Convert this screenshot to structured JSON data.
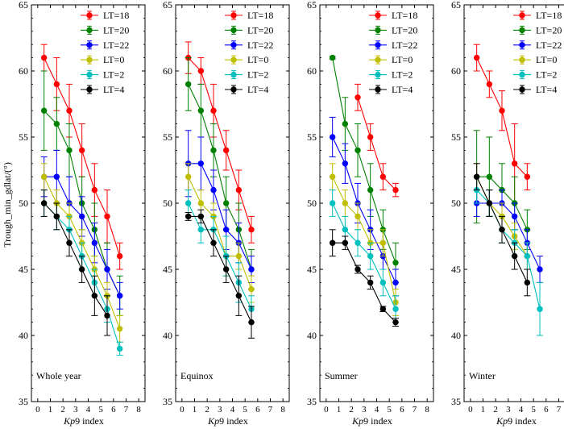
{
  "figure": {
    "ylabel": "Trough_min_gdlat/(°)",
    "xlabel_italic": "Kp",
    "xlabel_rest": "9 index"
  },
  "colors": {
    "LT=18": "#ff0000",
    "LT=20": "#008000",
    "LT=22": "#0000ff",
    "LT=0": "#bfbf00",
    "LT=2": "#00bfbf",
    "LT=4": "#000000"
  },
  "chart_data": [
    {
      "type": "line",
      "title": "Whole year",
      "xlabel": "Kp9 index",
      "ylabel": "Trough_min_gdlat/(°)",
      "xlim": [
        -0.5,
        8.5
      ],
      "ylim": [
        35,
        65
      ],
      "xticks": [
        "0",
        "1",
        "2",
        "3",
        "4",
        "5",
        "6",
        "7",
        "8"
      ],
      "yticks": [
        "35",
        "40",
        "45",
        "50",
        "55",
        "60",
        "65"
      ],
      "legend": [
        "LT=18",
        "LT=20",
        "LT=22",
        "LT=0",
        "LT=2",
        "LT=4"
      ],
      "legend_position": "top-right",
      "series": [
        {
          "name": "LT=18",
          "x": [
            0.5,
            1.5,
            2.5,
            3.5,
            4.5,
            5.5,
            6.5
          ],
          "y": [
            61,
            59,
            57,
            54,
            51,
            49,
            46
          ],
          "err": [
            1,
            2,
            2,
            2,
            2,
            2,
            1
          ]
        },
        {
          "name": "LT=20",
          "x": [
            0.5,
            1.5,
            2.5,
            3.5,
            4.5,
            5.5,
            6.5
          ],
          "y": [
            57,
            56,
            54,
            50,
            48,
            45,
            43
          ],
          "err": [
            3,
            2,
            2,
            2,
            2,
            2,
            1.5
          ]
        },
        {
          "name": "LT=22",
          "x": [
            0.5,
            1.5,
            2.5,
            3.5,
            4.5,
            5.5,
            6.5
          ],
          "y": [
            52,
            52,
            50,
            49,
            47,
            45,
            43
          ],
          "err": [
            1.5,
            2,
            2,
            1.5,
            1.5,
            1.5,
            1
          ]
        },
        {
          "name": "LT=0",
          "x": [
            0.5,
            1.5,
            2.5,
            3.5,
            4.5,
            5.5,
            6.5
          ],
          "y": [
            52,
            50,
            49,
            47,
            45,
            43,
            40.5
          ],
          "err": [
            1,
            1,
            1,
            1,
            1,
            1,
            1
          ]
        },
        {
          "name": "LT=2",
          "x": [
            0.5,
            1.5,
            2.5,
            3.5,
            4.5,
            5.5,
            6.5
          ],
          "y": [
            50,
            49,
            48,
            46,
            44,
            42,
            39
          ],
          "err": [
            1,
            1,
            1,
            1,
            1,
            1,
            0.5
          ]
        },
        {
          "name": "LT=4",
          "x": [
            0.5,
            1.5,
            2.5,
            3.5,
            4.5,
            5.5
          ],
          "y": [
            50,
            49,
            47,
            45,
            43,
            41.5
          ],
          "err": [
            1,
            1,
            1,
            1,
            1.5,
            1.5
          ]
        }
      ]
    },
    {
      "type": "line",
      "title": "Equinox",
      "xlabel": "Kp9 index",
      "ylabel": "Trough_min_gdlat/(°)",
      "xlim": [
        -0.5,
        8.5
      ],
      "ylim": [
        35,
        65
      ],
      "xticks": [
        "0",
        "1",
        "2",
        "3",
        "4",
        "5",
        "6",
        "7",
        "8"
      ],
      "yticks": [
        "35",
        "40",
        "45",
        "50",
        "55",
        "60",
        "65"
      ],
      "legend": [
        "LT=18",
        "LT=20",
        "LT=22",
        "LT=0",
        "LT=2",
        "LT=4"
      ],
      "legend_position": "top-right",
      "series": [
        {
          "name": "LT=18",
          "x": [
            0.5,
            1.5,
            2.5,
            3.5,
            4.5,
            5.5
          ],
          "y": [
            61,
            60,
            57,
            54,
            51,
            48
          ],
          "err": [
            1.2,
            1,
            2,
            1.5,
            1.5,
            1
          ]
        },
        {
          "name": "LT=20",
          "x": [
            0.5,
            1.5,
            2.5,
            3.5,
            4.5,
            5.5
          ],
          "y": [
            59,
            57,
            54,
            50,
            48,
            45
          ],
          "err": [
            2,
            2,
            2,
            2,
            2,
            1.5
          ]
        },
        {
          "name": "LT=22",
          "x": [
            0.5,
            1.5,
            2.5,
            3.5,
            4.5,
            5.5
          ],
          "y": [
            53,
            53,
            51,
            48,
            47,
            45
          ],
          "err": [
            2.5,
            2,
            1.5,
            1.5,
            1.5,
            1
          ]
        },
        {
          "name": "LT=0",
          "x": [
            0.5,
            1.5,
            2.5,
            3.5,
            4.5,
            5.5
          ],
          "y": [
            52,
            50,
            49,
            46,
            46,
            43.5
          ],
          "err": [
            1,
            1,
            1,
            1.5,
            1,
            1
          ]
        },
        {
          "name": "LT=2",
          "x": [
            0.5,
            1.5,
            2.5,
            3.5,
            4.5,
            5.5
          ],
          "y": [
            50,
            48,
            48,
            46,
            44,
            42
          ],
          "err": [
            1,
            1,
            1,
            1.5,
            1.5,
            1
          ]
        },
        {
          "name": "LT=4",
          "x": [
            0.5,
            1.5,
            2.5,
            3.5,
            4.5,
            5.5
          ],
          "y": [
            49,
            49,
            47,
            45,
            43,
            41
          ],
          "err": [
            0.3,
            0.5,
            1,
            1,
            1.5,
            1.2
          ]
        }
      ]
    },
    {
      "type": "line",
      "title": "Summer",
      "xlabel": "Kp9 index",
      "ylabel": "Trough_min_gdlat/(°)",
      "xlim": [
        -0.5,
        8.5
      ],
      "ylim": [
        35,
        65
      ],
      "xticks": [
        "0",
        "1",
        "2",
        "3",
        "4",
        "5",
        "6",
        "7",
        "8"
      ],
      "yticks": [
        "35",
        "40",
        "45",
        "50",
        "55",
        "60",
        "65"
      ],
      "legend": [
        "LT=18",
        "LT=20",
        "LT=22",
        "LT=0",
        "LT=2",
        "LT=4"
      ],
      "legend_position": "top-right",
      "series": [
        {
          "name": "LT=18",
          "x": [
            2.5,
            3.5,
            4.5,
            5.5
          ],
          "y": [
            58,
            55,
            52,
            51
          ],
          "err": [
            1,
            1,
            1,
            0.5
          ]
        },
        {
          "name": "LT=20",
          "x": [
            0.5,
            1.5,
            2.5,
            3.5,
            4.5,
            5.5
          ],
          "y": [
            61,
            56,
            54,
            51,
            48,
            45.5
          ],
          "err": [
            0.1,
            2,
            2,
            2,
            1.5,
            1.5
          ]
        },
        {
          "name": "LT=22",
          "x": [
            0.5,
            1.5,
            2.5,
            3.5,
            4.5,
            5.5
          ],
          "y": [
            55,
            53,
            50,
            48,
            46,
            44
          ],
          "err": [
            1.5,
            1.5,
            1.5,
            1.5,
            1,
            1
          ]
        },
        {
          "name": "LT=0",
          "x": [
            0.5,
            1.5,
            2.5,
            3.5,
            4.5,
            5.5
          ],
          "y": [
            52,
            50,
            49,
            47,
            47,
            42.5
          ],
          "err": [
            1,
            1,
            1,
            1,
            1,
            1
          ]
        },
        {
          "name": "LT=2",
          "x": [
            0.5,
            1.5,
            2.5,
            3.5,
            4.5,
            5.5
          ],
          "y": [
            50,
            48,
            47,
            46,
            44,
            42
          ],
          "err": [
            1,
            1,
            1,
            1,
            1,
            1
          ]
        },
        {
          "name": "LT=4",
          "x": [
            0.5,
            1.5,
            2.5,
            3.5,
            4.5,
            5.5
          ],
          "y": [
            47,
            47,
            45,
            44,
            42,
            41
          ],
          "err": [
            1,
            0.5,
            0.3,
            0.5,
            0.2,
            0.3
          ]
        }
      ]
    },
    {
      "type": "line",
      "title": "Winter",
      "xlabel": "Kp9 index",
      "ylabel": "Trough_min_gdlat/(°)",
      "xlim": [
        -0.5,
        8.5
      ],
      "ylim": [
        35,
        65
      ],
      "xticks": [
        "0",
        "1",
        "2",
        "3",
        "4",
        "5",
        "6",
        "7",
        "8"
      ],
      "yticks": [
        "35",
        "40",
        "45",
        "50",
        "55",
        "60",
        "65"
      ],
      "legend": [
        "LT=18",
        "LT=20",
        "LT=22",
        "LT=0",
        "LT=2",
        "LT=4"
      ],
      "legend_position": "top-right",
      "series": [
        {
          "name": "LT=18",
          "x": [
            0.5,
            1.5,
            2.5,
            3.5,
            4.5
          ],
          "y": [
            61,
            59,
            57,
            53,
            52
          ],
          "err": [
            1,
            1,
            1.5,
            3,
            1
          ]
        },
        {
          "name": "LT=20",
          "x": [
            0.5,
            1.5,
            2.5,
            3.5,
            4.5
          ],
          "y": [
            52,
            52,
            51,
            50,
            48
          ],
          "err": [
            3.5,
            3,
            2,
            2,
            1.5
          ]
        },
        {
          "name": "LT=22",
          "x": [
            0.5,
            1.5,
            2.5,
            3.5,
            4.5,
            5.5
          ],
          "y": [
            50,
            50,
            50,
            49,
            47,
            45
          ],
          "err": [
            1,
            1,
            1,
            1,
            1,
            1
          ]
        },
        {
          "name": "LT=0",
          "x": [
            0.5,
            1.5,
            2.5,
            3.5,
            4.5
          ],
          "y": [
            52,
            50,
            49,
            47.5,
            46
          ],
          "err": [
            1,
            1,
            1,
            1,
            1
          ]
        },
        {
          "name": "LT=2",
          "x": [
            0.5,
            1.5,
            2.5,
            3.5,
            4.5,
            5.5
          ],
          "y": [
            51,
            50,
            48,
            47,
            46,
            42
          ],
          "err": [
            1,
            1,
            1,
            1,
            1,
            2
          ]
        },
        {
          "name": "LT=4",
          "x": [
            0.5,
            1.5,
            2.5,
            3.5,
            4.5
          ],
          "y": [
            52,
            50,
            48,
            46,
            44
          ],
          "err": [
            1,
            1,
            1,
            1,
            1
          ]
        }
      ]
    }
  ]
}
